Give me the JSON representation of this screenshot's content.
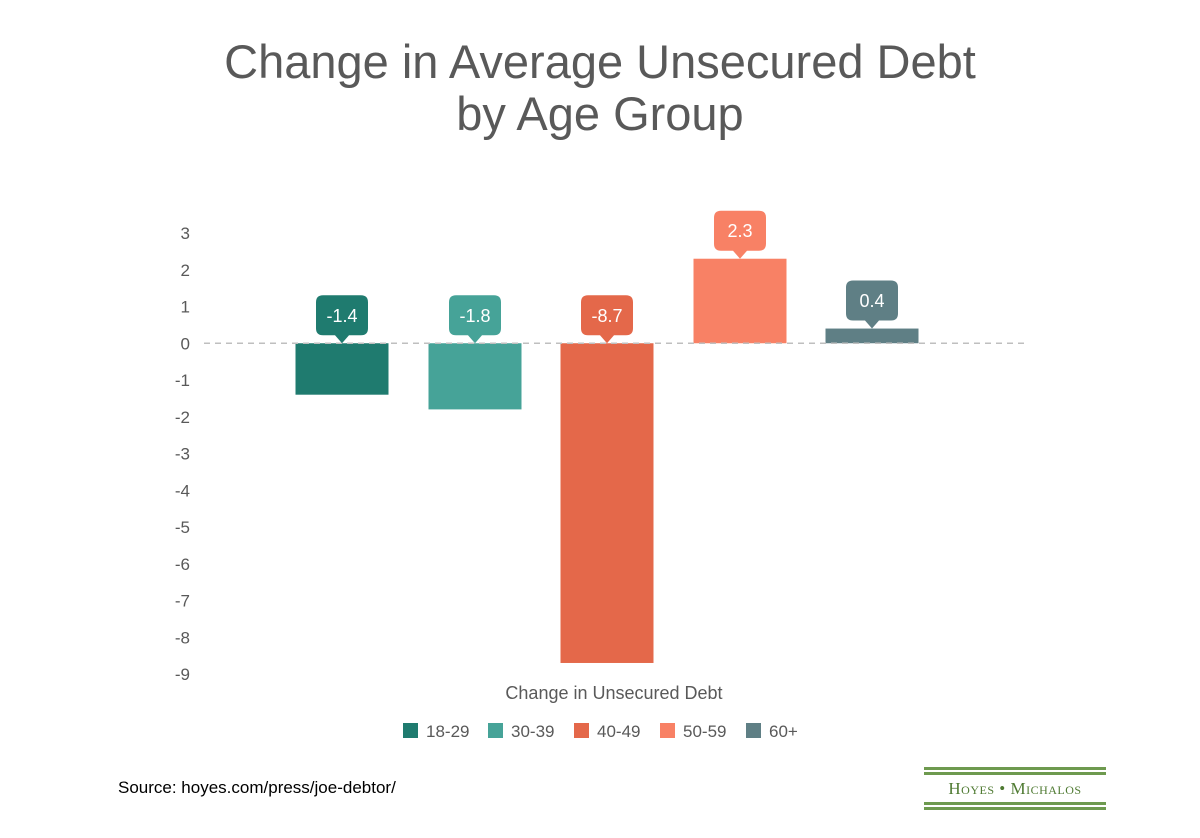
{
  "chart_data": {
    "type": "bar",
    "title_lines": [
      "Change in Average Unsecured Debt",
      "by Age Group"
    ],
    "xlabel": "Change in Unsecured Debt",
    "ylabel": "",
    "ylim": [
      -9,
      3
    ],
    "yticks": [
      3,
      2,
      1,
      0,
      -1,
      -2,
      -3,
      -4,
      -5,
      -6,
      -7,
      -8,
      -9
    ],
    "grid": false,
    "zero_line": "dashed",
    "legend_position": "bottom",
    "series": [
      {
        "name": "18-29",
        "value": -1.4,
        "label": "-1.4",
        "color": "#1f7b6f"
      },
      {
        "name": "30-39",
        "value": -1.8,
        "label": "-1.8",
        "color": "#46a398"
      },
      {
        "name": "40-49",
        "value": -8.7,
        "label": "-8.7",
        "color": "#e4684a"
      },
      {
        "name": "50-59",
        "value": 2.3,
        "label": "2.3",
        "color": "#f88165"
      },
      {
        "name": "60+",
        "value": 0.4,
        "label": "0.4",
        "color": "#5f7f85"
      }
    ]
  },
  "footer": {
    "source": "Source: hoyes.com/press/joe-debtor/",
    "logo_text": "Hoyes • Michalos"
  }
}
